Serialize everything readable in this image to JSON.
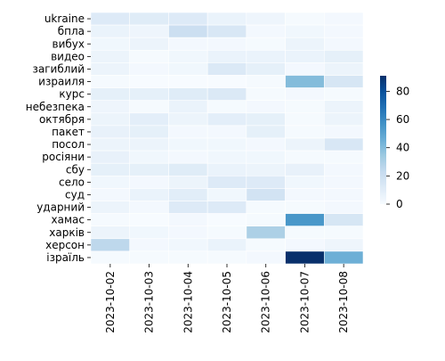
{
  "chart_data": {
    "type": "heatmap",
    "title": "",
    "xlabel": "",
    "ylabel": "",
    "x_categories": [
      "2023-10-02",
      "2023-10-03",
      "2023-10-04",
      "2023-10-05",
      "2023-10-06",
      "2023-10-07",
      "2023-10-08"
    ],
    "y_categories": [
      "ukraine",
      "бпла",
      "вибух",
      "видео",
      "загиблий",
      "израиля",
      "курс",
      "небезпека",
      "октября",
      "пакет",
      "посол",
      "росіяни",
      "сбу",
      "село",
      "суд",
      "ударний",
      "хамас",
      "харків",
      "херсон",
      "ізраїль"
    ],
    "values": [
      [
        12,
        11,
        12,
        6,
        4,
        1,
        2
      ],
      [
        6,
        4,
        20,
        14,
        2,
        3,
        2
      ],
      [
        3,
        5,
        2,
        2,
        1,
        5,
        2
      ],
      [
        5,
        1,
        3,
        6,
        6,
        6,
        8
      ],
      [
        5,
        2,
        3,
        13,
        8,
        2,
        5
      ],
      [
        1,
        0,
        0,
        0,
        1,
        40,
        15
      ],
      [
        8,
        8,
        11,
        13,
        1,
        2,
        1
      ],
      [
        4,
        1,
        6,
        1,
        2,
        1,
        5
      ],
      [
        5,
        9,
        5,
        9,
        8,
        1,
        5
      ],
      [
        7,
        8,
        2,
        2,
        8,
        1,
        2
      ],
      [
        5,
        5,
        3,
        3,
        2,
        5,
        14
      ],
      [
        7,
        3,
        2,
        3,
        3,
        1,
        1
      ],
      [
        8,
        8,
        11,
        6,
        5,
        7,
        2
      ],
      [
        3,
        2,
        5,
        12,
        12,
        3,
        2
      ],
      [
        2,
        6,
        10,
        3,
        17,
        2,
        2
      ],
      [
        5,
        2,
        12,
        12,
        1,
        1,
        2
      ],
      [
        1,
        0,
        2,
        0,
        1,
        55,
        15
      ],
      [
        5,
        3,
        2,
        1,
        30,
        1,
        1
      ],
      [
        25,
        2,
        3,
        6,
        1,
        2,
        4
      ],
      [
        1,
        1,
        1,
        1,
        2,
        91,
        45
      ]
    ],
    "zlim": [
      0,
      91
    ],
    "colorbar": {
      "ticks": [
        0,
        20,
        40,
        60,
        80
      ]
    },
    "colormap": [
      "#f7fbff",
      "#deebf7",
      "#c6dbef",
      "#9ecae1",
      "#6baed6",
      "#4292c6",
      "#2171b5",
      "#08519c",
      "#08306b"
    ],
    "cell_border_color": "#ffffff",
    "legend": "right"
  }
}
